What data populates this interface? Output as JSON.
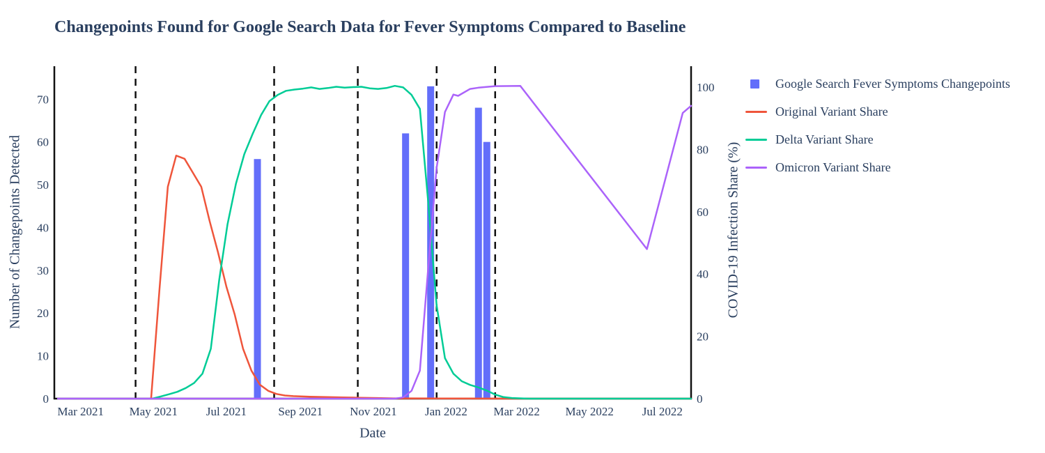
{
  "title": "Changepoints Found for Google Search Data for Fever Symptoms Compared to Baseline",
  "colors": {
    "text": "#2a3f5f",
    "axis": "#111111",
    "bar": "#636EFA",
    "original": "#EF553B",
    "delta": "#00CC96",
    "omicron": "#AB63FA"
  },
  "chart_data": {
    "type": "bar+line combo with dual y-axes and dashed changepoint vlines",
    "x_axis": {
      "title": "Date",
      "range": [
        "2021-02-07",
        "2022-07-25"
      ],
      "ticks": [
        {
          "date": "2021-03-01",
          "label": "Mar 2021"
        },
        {
          "date": "2021-05-01",
          "label": "May 2021"
        },
        {
          "date": "2021-07-01",
          "label": "Jul 2021"
        },
        {
          "date": "2021-09-01",
          "label": "Sep 2021"
        },
        {
          "date": "2021-11-01",
          "label": "Nov 2021"
        },
        {
          "date": "2022-01-01",
          "label": "Jan 2022"
        },
        {
          "date": "2022-03-01",
          "label": "Mar 2022"
        },
        {
          "date": "2022-05-01",
          "label": "May 2022"
        },
        {
          "date": "2022-07-01",
          "label": "Jul 2022"
        }
      ]
    },
    "y_left": {
      "title": "Number of Changepoints Detected",
      "range": [
        0,
        77.7
      ],
      "ticks": [
        0,
        10,
        20,
        30,
        40,
        50,
        60,
        70
      ]
    },
    "y_right": {
      "title": "COVID-19 Infection Share (%)",
      "range": [
        0,
        106.7
      ],
      "ticks": [
        0,
        20,
        40,
        60,
        80,
        100
      ]
    },
    "changepoint_vlines": {
      "color": "#111111",
      "dates": [
        "2021-04-16",
        "2021-08-10",
        "2021-10-19",
        "2021-12-24",
        "2022-02-11"
      ]
    },
    "bar_series": {
      "id": "changepoints",
      "name": "Google Search Fever Symptoms Changepoints",
      "color": "#636EFA",
      "axis": "left",
      "points": [
        [
          "2021-07-27",
          56
        ],
        [
          "2021-11-28",
          62
        ],
        [
          "2021-12-19",
          73
        ],
        [
          "2022-01-28",
          68
        ],
        [
          "2022-02-04",
          60
        ]
      ]
    },
    "line_series": [
      {
        "id": "original-variant",
        "name": "Original Variant Share",
        "color": "#EF553B",
        "axis": "right",
        "points": [
          [
            "2021-04-29",
            0
          ],
          [
            "2021-05-06",
            35
          ],
          [
            "2021-05-13",
            68
          ],
          [
            "2021-05-20",
            78
          ],
          [
            "2021-05-27",
            77
          ],
          [
            "2021-06-03",
            72.5
          ],
          [
            "2021-06-10",
            68
          ],
          [
            "2021-06-17",
            57
          ],
          [
            "2021-06-24",
            47
          ],
          [
            "2021-07-01",
            36
          ],
          [
            "2021-07-08",
            27
          ],
          [
            "2021-07-15",
            16
          ],
          [
            "2021-07-22",
            9
          ],
          [
            "2021-07-29",
            4.5
          ],
          [
            "2021-08-05",
            2.5
          ],
          [
            "2021-08-12",
            1.5
          ],
          [
            "2021-08-19",
            1.0
          ],
          [
            "2021-08-26",
            0.8
          ],
          [
            "2021-09-09",
            0.6
          ],
          [
            "2021-09-23",
            0.5
          ],
          [
            "2021-10-07",
            0.4
          ],
          [
            "2021-10-21",
            0.3
          ],
          [
            "2021-11-04",
            0.2
          ],
          [
            "2021-11-18",
            0.1
          ],
          [
            "2021-12-02",
            0.1
          ],
          [
            "2022-01-06",
            0.05
          ],
          [
            "2022-03-03",
            0
          ],
          [
            "2022-07-25",
            0
          ]
        ]
      },
      {
        "id": "delta-variant",
        "name": "Delta Variant Share",
        "color": "#00CC96",
        "axis": "right",
        "points": [
          [
            "2021-04-30",
            0
          ],
          [
            "2021-05-07",
            0.7
          ],
          [
            "2021-05-14",
            1.4
          ],
          [
            "2021-05-21",
            2.2
          ],
          [
            "2021-05-28",
            3.4
          ],
          [
            "2021-06-04",
            5
          ],
          [
            "2021-06-11",
            8
          ],
          [
            "2021-06-18",
            16
          ],
          [
            "2021-06-25",
            38
          ],
          [
            "2021-07-02",
            56
          ],
          [
            "2021-07-09",
            69
          ],
          [
            "2021-07-16",
            78.5
          ],
          [
            "2021-07-23",
            85
          ],
          [
            "2021-07-30",
            91
          ],
          [
            "2021-08-06",
            95.5
          ],
          [
            "2021-08-13",
            97.5
          ],
          [
            "2021-08-20",
            98.8
          ],
          [
            "2021-08-27",
            99.2
          ],
          [
            "2021-09-03",
            99.5
          ],
          [
            "2021-09-10",
            99.9
          ],
          [
            "2021-09-17",
            99.4
          ],
          [
            "2021-09-24",
            99.7
          ],
          [
            "2021-10-01",
            100.1
          ],
          [
            "2021-10-08",
            99.8
          ],
          [
            "2021-10-15",
            100
          ],
          [
            "2021-10-22",
            100.1
          ],
          [
            "2021-10-29",
            99.6
          ],
          [
            "2021-11-05",
            99.4
          ],
          [
            "2021-11-12",
            99.7
          ],
          [
            "2021-11-19",
            100.4
          ],
          [
            "2021-11-26",
            99.9
          ],
          [
            "2021-12-03",
            97.5
          ],
          [
            "2021-12-10",
            93
          ],
          [
            "2021-12-17",
            63
          ],
          [
            "2021-12-24",
            30
          ],
          [
            "2021-12-31",
            13
          ],
          [
            "2022-01-07",
            8
          ],
          [
            "2022-01-14",
            5.6
          ],
          [
            "2022-01-21",
            4.4
          ],
          [
            "2022-01-28",
            3.6
          ],
          [
            "2022-02-04",
            2.6
          ],
          [
            "2022-02-11",
            1.3
          ],
          [
            "2022-02-18",
            0.5
          ],
          [
            "2022-02-25",
            0.2
          ],
          [
            "2022-03-11",
            0
          ],
          [
            "2022-07-25",
            0
          ]
        ]
      },
      {
        "id": "omicron-variant",
        "name": "Omicron Variant Share",
        "color": "#AB63FA",
        "axis": "right",
        "points": [
          [
            "2021-02-10",
            0
          ],
          [
            "2021-11-19",
            0
          ],
          [
            "2021-11-26",
            0.4
          ],
          [
            "2021-12-03",
            2.5
          ],
          [
            "2021-12-10",
            9
          ],
          [
            "2021-12-17",
            42
          ],
          [
            "2021-12-24",
            74
          ],
          [
            "2021-12-31",
            92
          ],
          [
            "2022-01-07",
            97.6
          ],
          [
            "2022-01-11",
            97.2
          ],
          [
            "2022-01-21",
            99.4
          ],
          [
            "2022-01-28",
            99.8
          ],
          [
            "2022-02-11",
            100.3
          ],
          [
            "2022-03-04",
            100.4
          ],
          [
            "2022-06-18",
            48
          ],
          [
            "2022-07-18",
            91.7
          ],
          [
            "2022-07-25",
            94
          ]
        ]
      }
    ]
  }
}
